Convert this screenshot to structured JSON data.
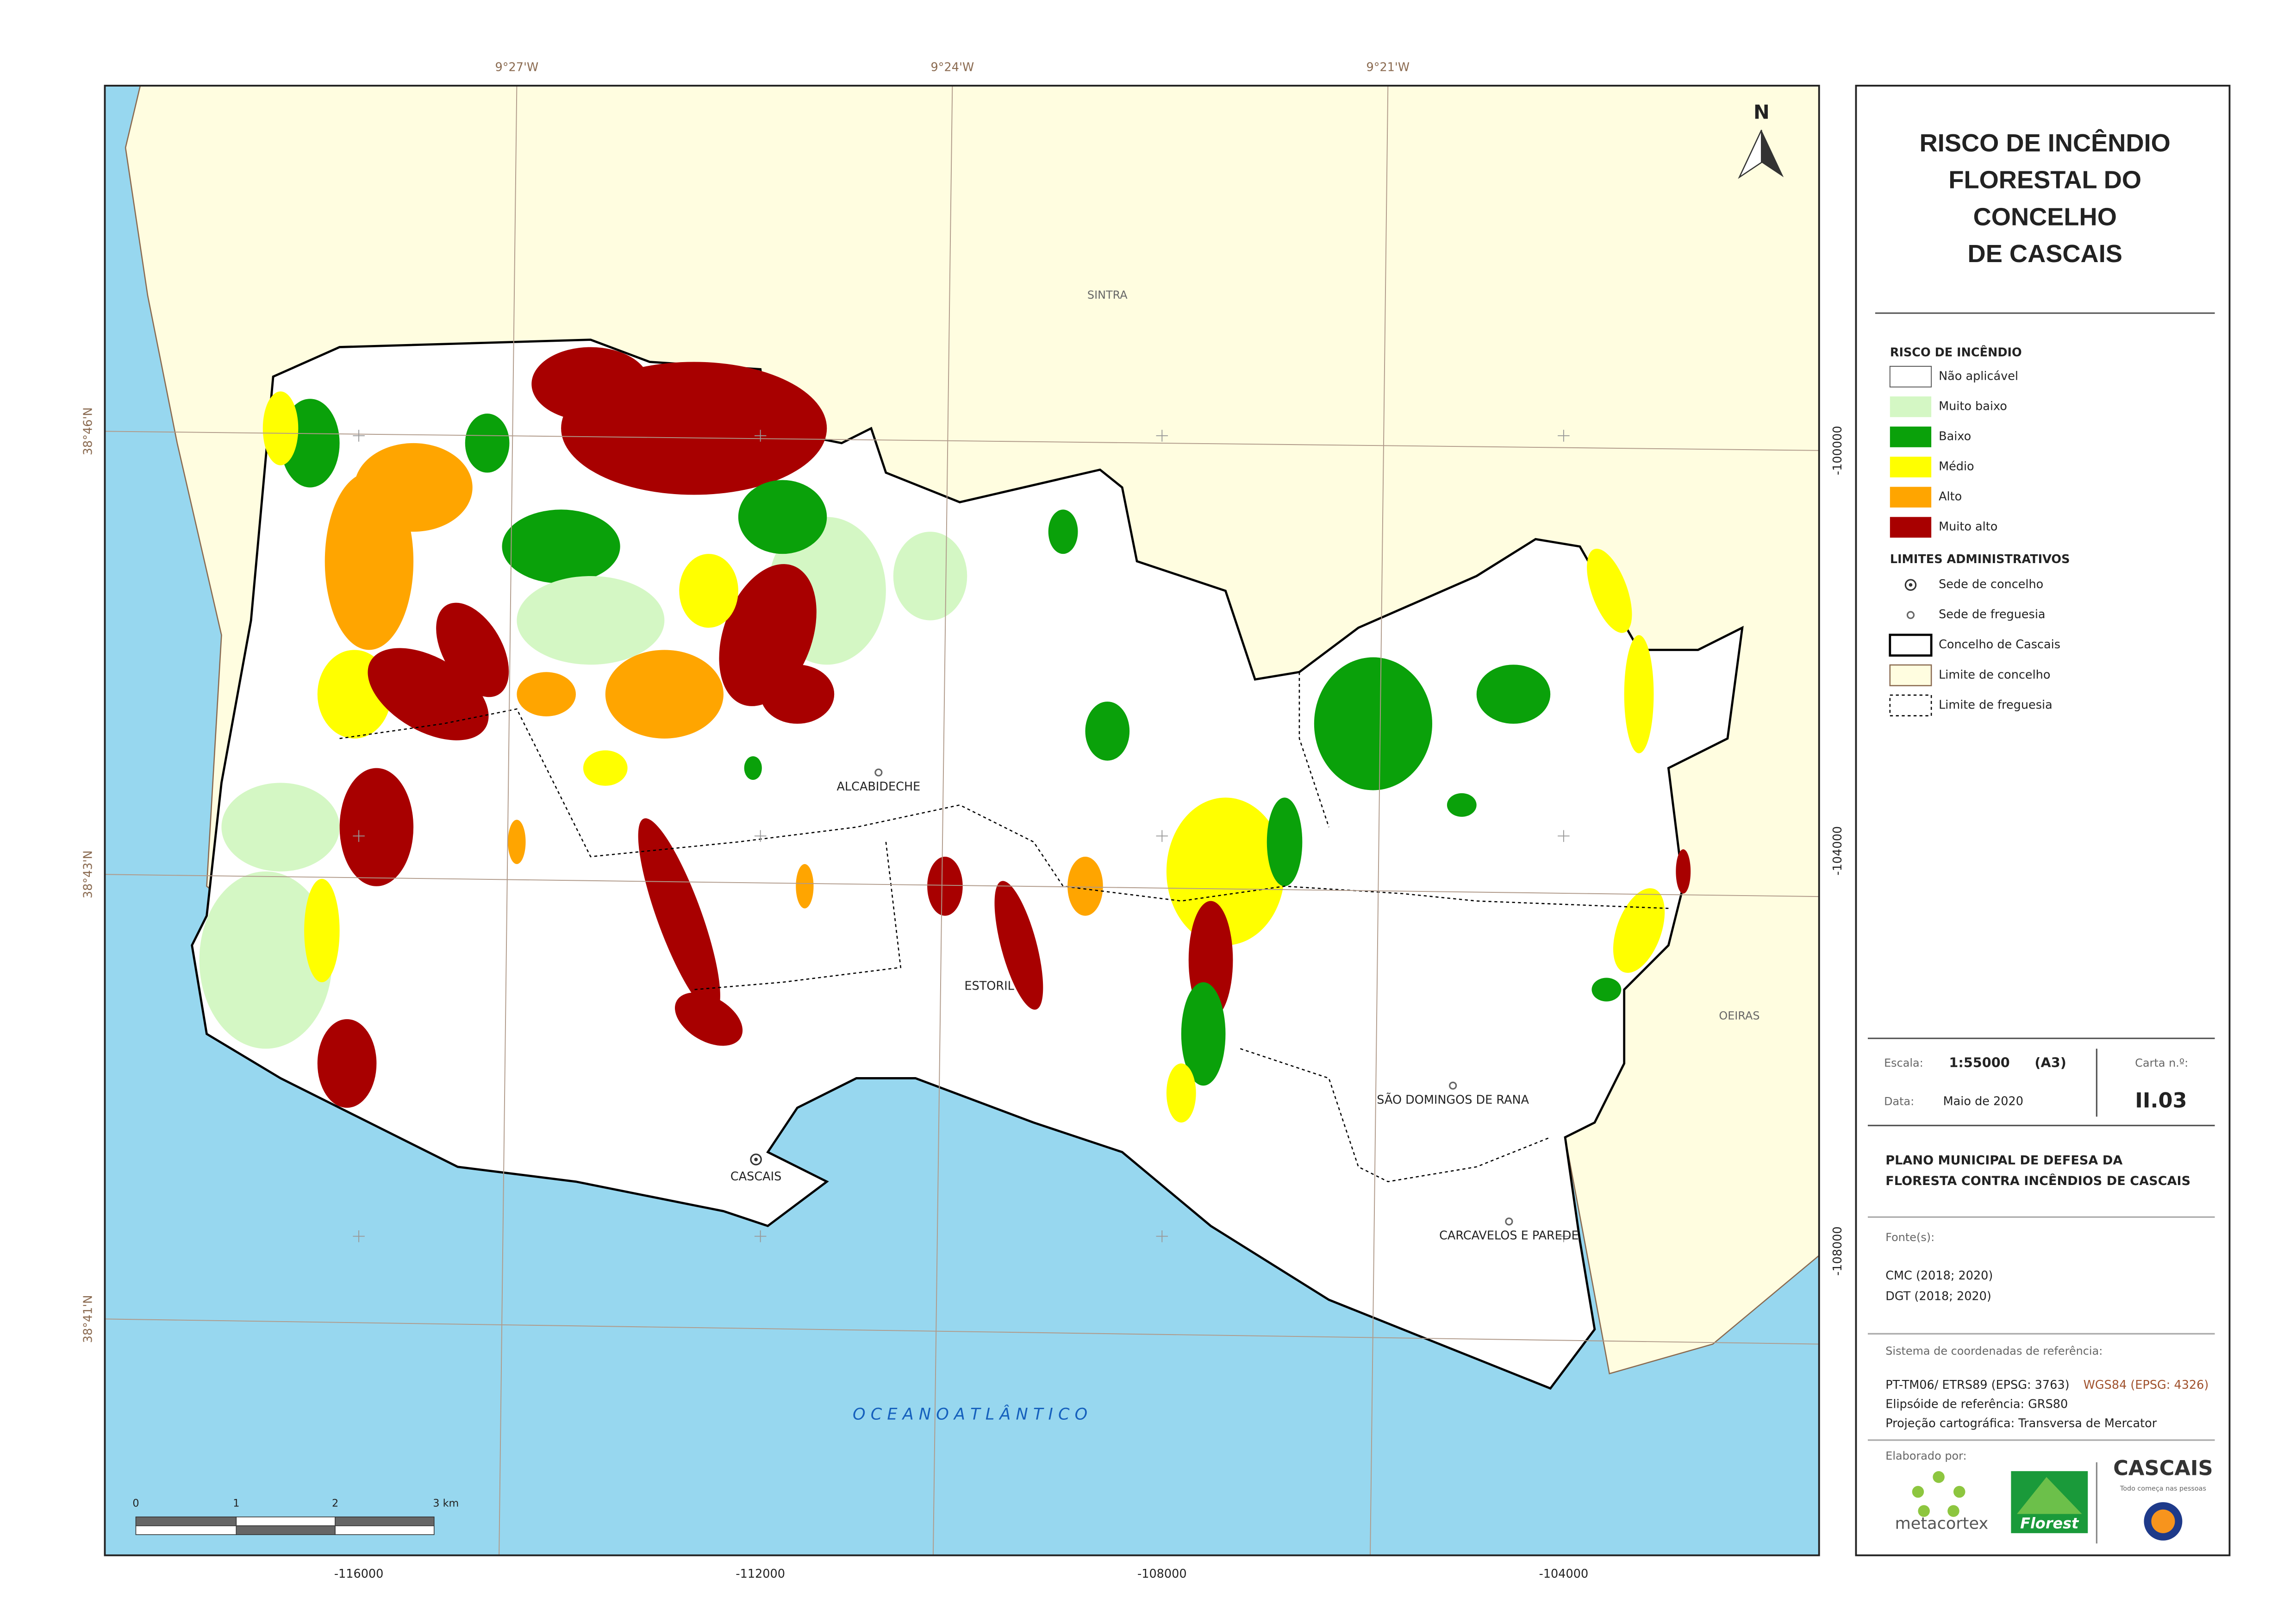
{
  "map": {
    "graticule_top": [
      "9°27'W",
      "9°24'W",
      "9°21'W"
    ],
    "graticule_left": [
      "38°46'N",
      "38°43'N",
      "38°41'N"
    ],
    "grid_bottom": [
      "-116000",
      "-112000",
      "-108000",
      "-104000"
    ],
    "grid_right": [
      "-100000",
      "-104000",
      "-108000"
    ],
    "places": [
      {
        "name": "SINTRA"
      },
      {
        "name": "OEIRAS"
      },
      {
        "name": "ALCABIDECHE"
      },
      {
        "name": "ESTORIL"
      },
      {
        "name": "CASCAIS"
      },
      {
        "name": "SÃO DOMINGOS DE RANA"
      },
      {
        "name": "CARCAVELOS E PAREDE"
      }
    ],
    "ocean": "O C E A N O   A T L Â N T I C O",
    "north": "N",
    "scale_ticks": [
      "0",
      "1",
      "2",
      "3 km"
    ]
  },
  "panel": {
    "title": [
      "RISCO DE INCÊNDIO",
      "FLORESTAL DO",
      "CONCELHO",
      "DE CASCAIS"
    ],
    "risk_heading": "RISCO DE INCÊNDIO",
    "risk_items": [
      {
        "label": "Não aplicável",
        "color": "#ffffff"
      },
      {
        "label": "Muito baixo",
        "color": "#d4f7c4"
      },
      {
        "label": "Baixo",
        "color": "#0aa10a"
      },
      {
        "label": "Médio",
        "color": "#ffff00"
      },
      {
        "label": "Alto",
        "color": "#ffa500"
      },
      {
        "label": "Muito alto",
        "color": "#a80000"
      }
    ],
    "admin_heading": "LIMITES ADMINISTRATIVOS",
    "admin_items": [
      "Sede de concelho",
      "Sede de freguesia",
      "Concelho de Cascais",
      "Limite de concelho",
      "Limite de freguesia"
    ],
    "scale_label": "Escala:",
    "scale": "1:55000",
    "paper": "(A3)",
    "sheet_label": "Carta n.º:",
    "sheet": "II.03",
    "date_label": "Data:",
    "date": "Maio de 2020",
    "plan": [
      "PLANO MUNICIPAL DE DEFESA DA",
      "FLORESTA CONTRA INCÊNDIOS DE CASCAIS"
    ],
    "sources_label": "Fonte(s):",
    "sources": [
      "CMC (2018; 2020)",
      "DGT (2018; 2020)"
    ],
    "crs_label": "Sistema de coordenadas de referência:",
    "crs": "PT-TM06/ ETRS89 (EPSG: 3763)",
    "crs2": "WGS84 (EPSG: 4326)",
    "ellipsoid": "Elipsóide de referência: GRS80",
    "projection": "Projeção cartográfica: Transversa de Mercator",
    "made_by": "Elaborado por:",
    "logos": [
      "metacortex",
      "Florest",
      "CASCAIS",
      "Todo começa nas pessoas"
    ]
  }
}
